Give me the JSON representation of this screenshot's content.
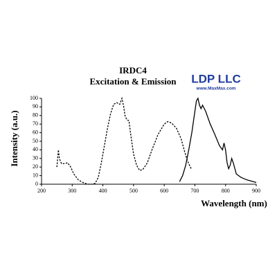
{
  "chart_data": {
    "type": "line",
    "title": "IRDC4",
    "subtitle": "Excitation & Emission",
    "brand": "LDP LLC",
    "website": "www.MaxMax.com",
    "x_label": "Wavelength (nm)",
    "y_label": "Intensity (a.u.)",
    "xlim": [
      200,
      900
    ],
    "ylim": [
      0,
      100
    ],
    "xticks": [
      200,
      300,
      400,
      500,
      600,
      700,
      800,
      900
    ],
    "yticks": [
      0,
      10,
      20,
      30,
      40,
      50,
      60,
      70,
      80,
      90,
      100
    ],
    "grid": false,
    "series": [
      {
        "color": "#000000",
        "line_style": "dashed",
        "x": [
          250,
          255,
          258,
          265,
          275,
          285,
          295,
          305,
          320,
          335,
          350,
          365,
          375,
          385,
          395,
          405,
          415,
          425,
          435,
          445,
          455,
          462,
          468,
          472,
          478,
          485,
          490,
          500,
          510,
          520,
          530,
          545,
          560,
          580,
          600,
          612,
          625,
          640,
          655,
          665,
          675,
          685,
          690
        ],
        "values": [
          20,
          40,
          30,
          24,
          24,
          25,
          20,
          12,
          5,
          2,
          0,
          0,
          1,
          8,
          25,
          45,
          65,
          82,
          93,
          95,
          93,
          100,
          90,
          80,
          75,
          74,
          60,
          35,
          22,
          16,
          17,
          25,
          40,
          58,
          70,
          73,
          71,
          65,
          53,
          40,
          28,
          20,
          17
        ]
      },
      {
        "color": "#000000",
        "line_style": "solid",
        "x": [
          650,
          660,
          670,
          680,
          690,
          700,
          705,
          710,
          715,
          720,
          725,
          735,
          750,
          765,
          780,
          790,
          795,
          800,
          805,
          810,
          815,
          820,
          825,
          835,
          850,
          870,
          890,
          900
        ],
        "values": [
          3,
          10,
          22,
          40,
          60,
          85,
          97,
          100,
          92,
          88,
          92,
          85,
          70,
          58,
          45,
          40,
          48,
          40,
          25,
          18,
          22,
          30,
          25,
          12,
          8,
          5,
          3,
          2
        ]
      }
    ]
  }
}
